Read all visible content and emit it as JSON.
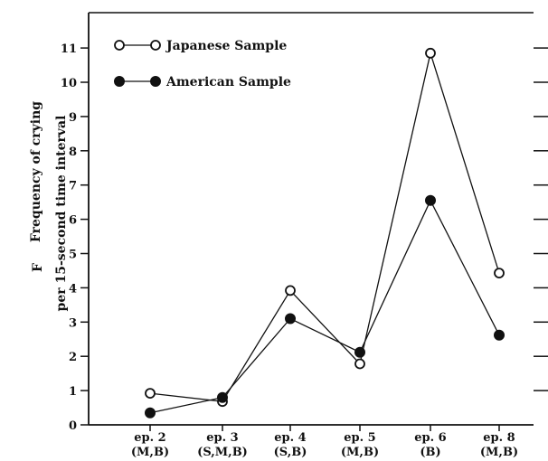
{
  "chart_data": {
    "type": "line",
    "ylabel_prefix": "F",
    "ylabel_line1": "Frequency of crying",
    "ylabel_line2": "per 15-second time interval",
    "ylim": [
      0,
      11.5
    ],
    "yticks": [
      0,
      1,
      2,
      3,
      4,
      5,
      6,
      7,
      8,
      9,
      10,
      11
    ],
    "categories": [
      {
        "line1": "ep. 2",
        "line2": "(M,B)"
      },
      {
        "line1": "ep. 3",
        "line2": "(S,M,B)"
      },
      {
        "line1": "ep. 4",
        "line2": "(S,B)"
      },
      {
        "line1": "ep. 5",
        "line2": "(M,B)"
      },
      {
        "line1": "ep. 6",
        "line2": "(B)"
      },
      {
        "line1": "ep. 8",
        "line2": "(M,B)"
      }
    ],
    "series": [
      {
        "name": "Japanese Sample",
        "marker": "open",
        "values": [
          0.92,
          0.68,
          3.92,
          1.78,
          10.85,
          4.43
        ]
      },
      {
        "name": "American Sample",
        "marker": "filled",
        "values": [
          0.35,
          0.8,
          3.1,
          2.12,
          6.55,
          2.62
        ]
      }
    ],
    "legend": "top-left",
    "grid": false
  }
}
